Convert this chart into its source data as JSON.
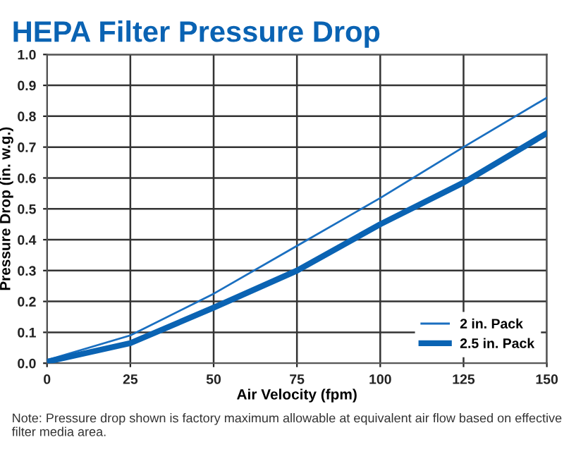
{
  "chart_data": {
    "type": "line",
    "title": "HEPA Filter Pressure Drop",
    "xlabel": "Air Velocity (fpm)",
    "ylabel": "Pressure Drop (in. w.g.)",
    "x": [
      0,
      25,
      50,
      75,
      100,
      125,
      150
    ],
    "series": [
      {
        "name": "2 in. Pack",
        "color": "#1a6fc0",
        "values": [
          0.01,
          0.09,
          0.225,
          0.38,
          0.535,
          0.7,
          0.86
        ]
      },
      {
        "name": "2.5 in. Pack",
        "color": "#0a63b3",
        "values": [
          0.005,
          0.065,
          0.18,
          0.3,
          0.45,
          0.585,
          0.745
        ]
      }
    ],
    "xlim": [
      0,
      150
    ],
    "xticks": [
      0,
      25,
      50,
      75,
      100,
      125,
      150
    ],
    "ylim": [
      0,
      1.0
    ],
    "yticks": [
      {
        "value": 0,
        "label": "0.0"
      },
      0.1,
      0.2,
      0.3,
      0.4,
      0.5,
      0.6,
      0.7,
      0.8,
      0.9,
      {
        "value": 1.0,
        "label": "1.0"
      }
    ],
    "grid": true,
    "legend": "bottom right",
    "marker": "none",
    "line_style": "solid",
    "annotations": [
      "Note: Pressure drop shown is factory maximum allowable at equivalent air flow based on effective filter media area."
    ]
  }
}
